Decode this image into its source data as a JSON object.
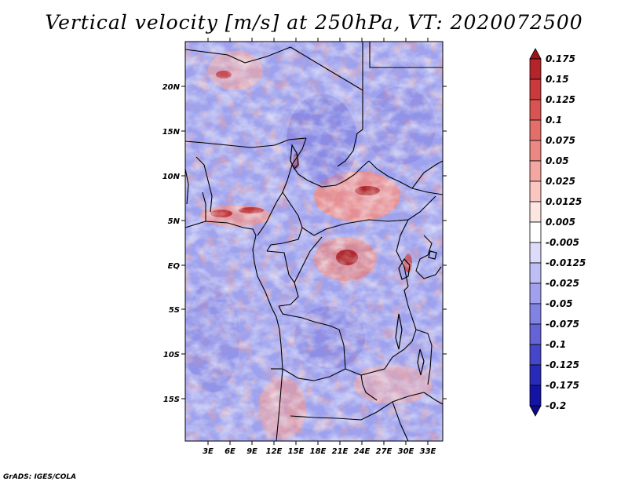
{
  "title": "Vertical velocity [m/s] at 250hPa, VT: 2020072500",
  "credit": "GrADS: IGES/COLA",
  "map": {
    "lat_labels": [
      "20N",
      "15N",
      "10N",
      "5N",
      "EQ",
      "5S",
      "10S",
      "15S"
    ],
    "lon_labels": [
      "3E",
      "6E",
      "9E",
      "12E",
      "15E",
      "18E",
      "21E",
      "24E",
      "27E",
      "30E",
      "33E"
    ]
  },
  "colorbar": {
    "labels": [
      "0.175",
      "0.15",
      "0.125",
      "0.1",
      "0.075",
      "0.05",
      "0.025",
      "0.0125",
      "0.005",
      "-0.005",
      "-0.0125",
      "-0.025",
      "-0.05",
      "-0.075",
      "-0.1",
      "-0.125",
      "-0.175",
      "-0.2"
    ],
    "colors": [
      "#a01418",
      "#b4242a",
      "#c83a3c",
      "#d85452",
      "#e46e6a",
      "#ec8884",
      "#f4a6a2",
      "#fac6c2",
      "#fde6e2",
      "#ffffff",
      "#dcdcfa",
      "#bebef4",
      "#a0a0ec",
      "#8282e2",
      "#6464d6",
      "#4646c8",
      "#2a2ab8",
      "#1414a4",
      "#0a0a8a"
    ]
  }
}
